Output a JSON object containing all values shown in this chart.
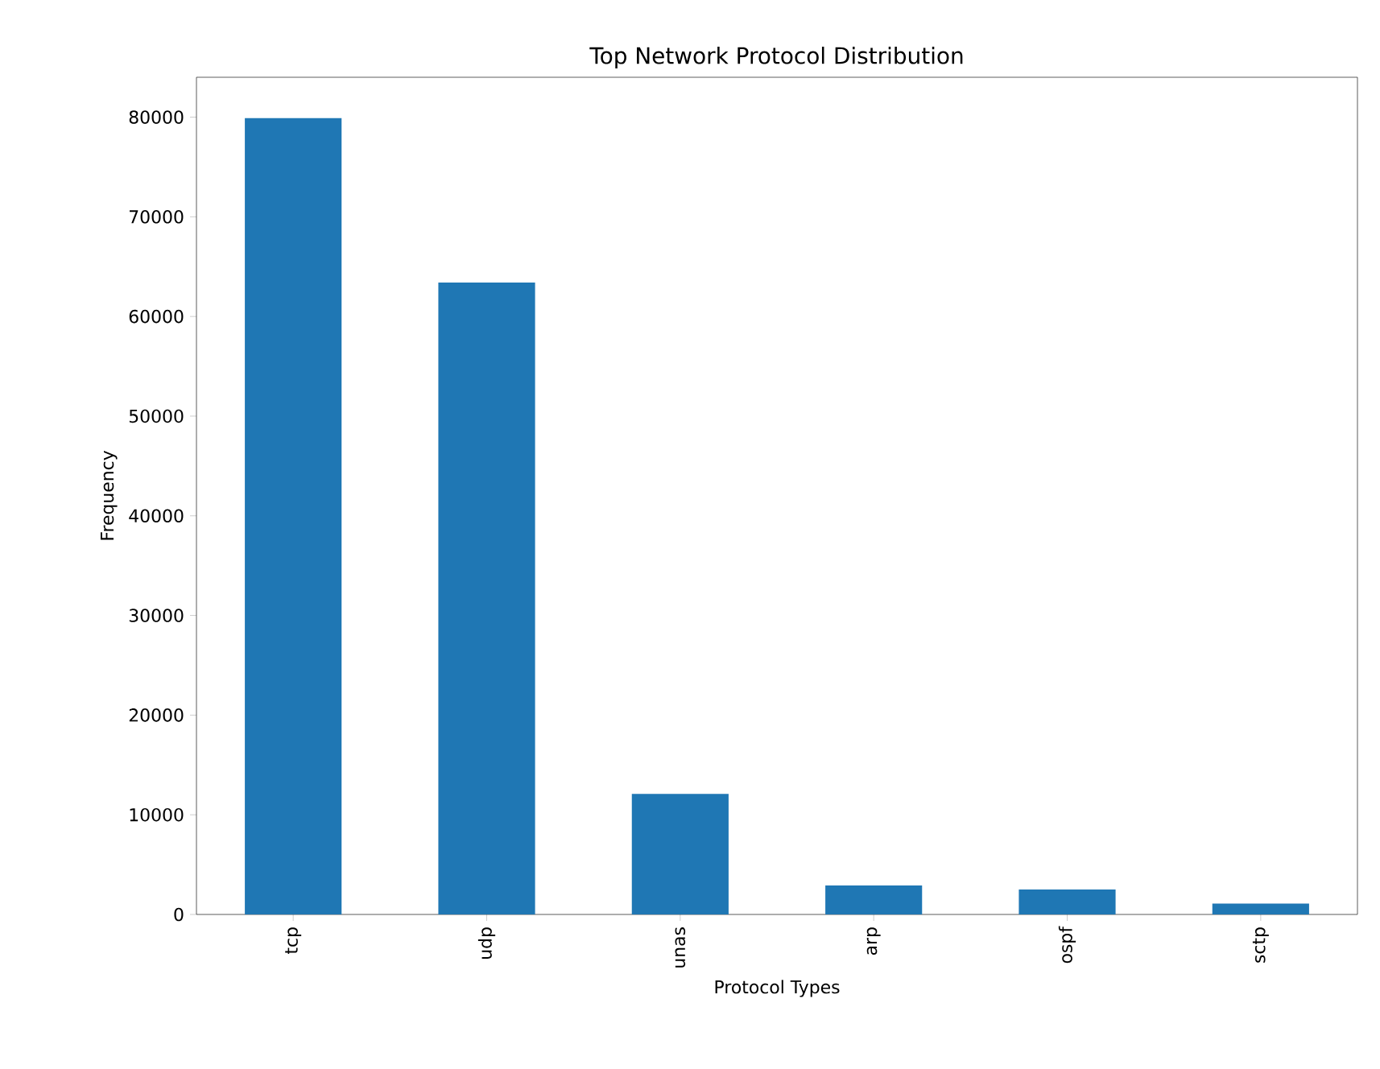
{
  "chart_data": {
    "type": "bar",
    "title": "Top Network Protocol Distribution",
    "xlabel": "Protocol Types",
    "ylabel": "Frequency",
    "categories": [
      "tcp",
      "udp",
      "unas",
      "arp",
      "ospf",
      "sctp"
    ],
    "values": [
      79900,
      63400,
      12100,
      2900,
      2500,
      1100
    ],
    "color": "#1f77b4",
    "ylim": [
      0,
      84000
    ],
    "yticks": [
      0,
      10000,
      20000,
      30000,
      40000,
      50000,
      60000,
      70000,
      80000
    ]
  }
}
